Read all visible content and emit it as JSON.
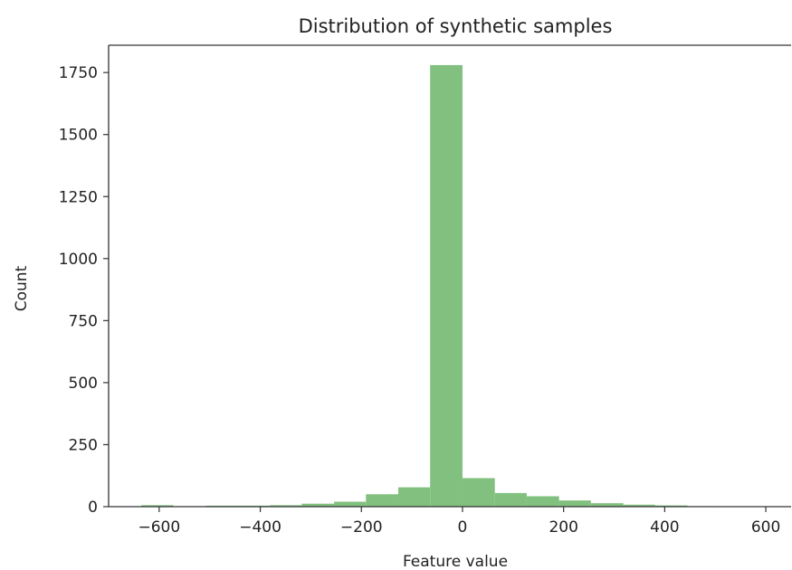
{
  "chart_data": {
    "type": "bar",
    "title": "Distribution of synthetic samples",
    "xlabel": "Feature value",
    "ylabel": "Count",
    "xlim": [
      -700,
      650
    ],
    "ylim": [
      0,
      1860
    ],
    "xticks": [
      -600,
      -400,
      -200,
      0,
      200,
      400,
      600
    ],
    "xtick_labels": [
      "−600",
      "−400",
      "−200",
      "0",
      "200",
      "400",
      "600"
    ],
    "yticks": [
      0,
      250,
      500,
      750,
      1000,
      1250,
      1500,
      1750
    ],
    "ytick_labels": [
      "0",
      "250",
      "500",
      "750",
      "1000",
      "1250",
      "1500",
      "1750"
    ],
    "bar_color": "#81c07f",
    "grid": false,
    "bins": [
      {
        "x0": -635,
        "x1": -572,
        "count": 6
      },
      {
        "x0": -572,
        "x1": -508,
        "count": 2
      },
      {
        "x0": -508,
        "x1": -445,
        "count": 4
      },
      {
        "x0": -445,
        "x1": -381,
        "count": 4
      },
      {
        "x0": -381,
        "x1": -318,
        "count": 6
      },
      {
        "x0": -318,
        "x1": -254,
        "count": 12
      },
      {
        "x0": -254,
        "x1": -191,
        "count": 20
      },
      {
        "x0": -191,
        "x1": -127,
        "count": 50
      },
      {
        "x0": -127,
        "x1": -64,
        "count": 78
      },
      {
        "x0": -64,
        "x1": 0,
        "count": 1780
      },
      {
        "x0": 0,
        "x1": 64,
        "count": 115
      },
      {
        "x0": 64,
        "x1": 127,
        "count": 55
      },
      {
        "x0": 127,
        "x1": 191,
        "count": 42
      },
      {
        "x0": 191,
        "x1": 254,
        "count": 25
      },
      {
        "x0": 254,
        "x1": 318,
        "count": 14
      },
      {
        "x0": 318,
        "x1": 381,
        "count": 8
      },
      {
        "x0": 381,
        "x1": 445,
        "count": 5
      },
      {
        "x0": 445,
        "x1": 508,
        "count": 2
      },
      {
        "x0": 508,
        "x1": 572,
        "count": 1
      },
      {
        "x0": 572,
        "x1": 635,
        "count": 1
      }
    ]
  }
}
